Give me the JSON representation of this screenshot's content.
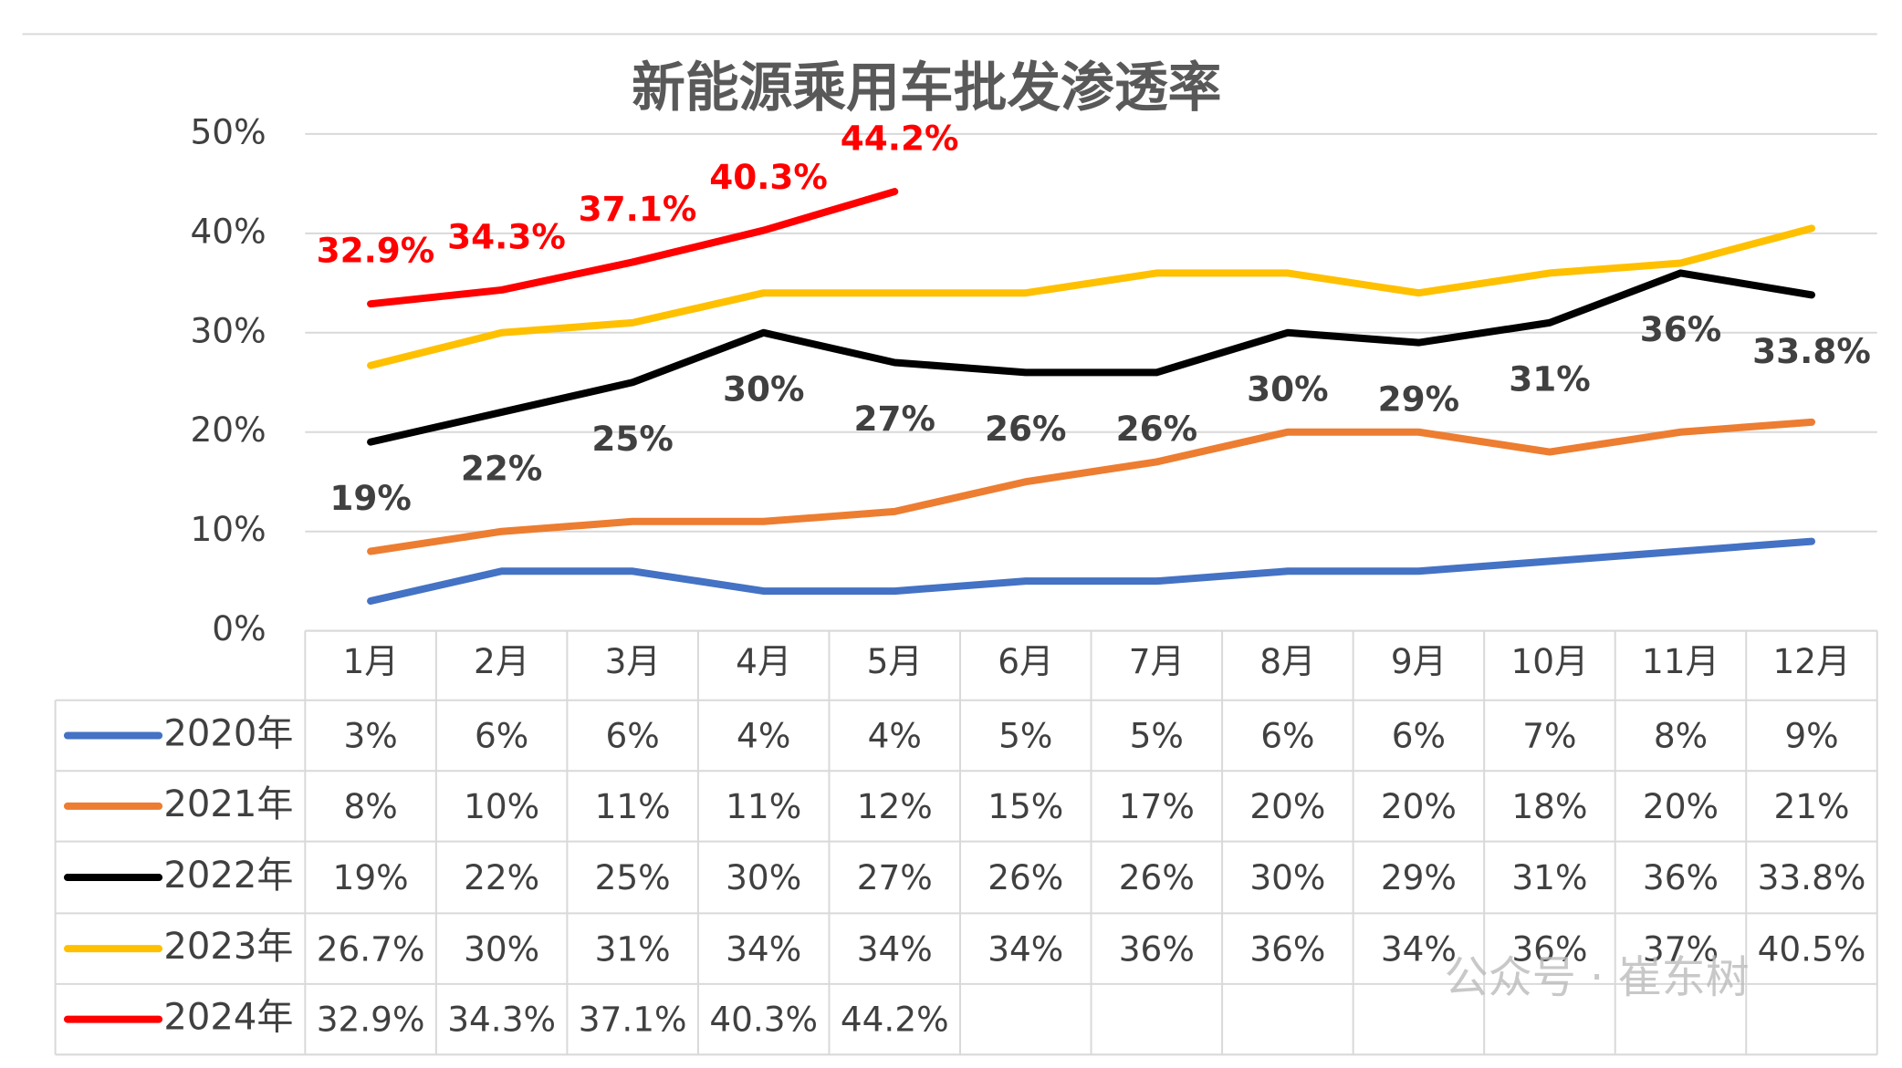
{
  "chart_data": {
    "type": "line",
    "title": "新能源乘用车批发渗透率",
    "categories": [
      "1月",
      "2月",
      "3月",
      "4月",
      "5月",
      "6月",
      "7月",
      "8月",
      "9月",
      "10月",
      "11月",
      "12月"
    ],
    "ylim": [
      0,
      50
    ],
    "yticks": [
      {
        "value": 0,
        "label": "0%"
      },
      {
        "value": 10,
        "label": "10%"
      },
      {
        "value": 20,
        "label": "20%"
      },
      {
        "value": 30,
        "label": "30%"
      },
      {
        "value": 40,
        "label": "40%"
      },
      {
        "value": 50,
        "label": "50%"
      }
    ],
    "grid": true,
    "series": [
      {
        "name": "2020年",
        "color": "#4472c4",
        "values": [
          3,
          6,
          6,
          4,
          4,
          5,
          5,
          6,
          6,
          7,
          8,
          9
        ],
        "value_labels": [
          "3%",
          "6%",
          "6%",
          "4%",
          "4%",
          "5%",
          "5%",
          "6%",
          "6%",
          "7%",
          "8%",
          "9%"
        ]
      },
      {
        "name": "2021年",
        "color": "#ed7d31",
        "values": [
          8,
          10,
          11,
          11,
          12,
          15,
          17,
          20,
          20,
          18,
          20,
          21
        ],
        "value_labels": [
          "8%",
          "10%",
          "11%",
          "11%",
          "12%",
          "15%",
          "17%",
          "20%",
          "20%",
          "18%",
          "20%",
          "21%"
        ]
      },
      {
        "name": "2022年",
        "color": "#000000",
        "values": [
          19,
          22,
          25,
          30,
          27,
          26,
          26,
          30,
          29,
          31,
          36,
          33.8
        ],
        "value_labels": [
          "19%",
          "22%",
          "25%",
          "30%",
          "27%",
          "26%",
          "26%",
          "30%",
          "29%",
          "31%",
          "36%",
          "33.8%"
        ],
        "show_labels": "below"
      },
      {
        "name": "2023年",
        "color": "#ffc000",
        "values": [
          26.7,
          30,
          31,
          34,
          34,
          34,
          36,
          36,
          34,
          36,
          37,
          40.5
        ],
        "value_labels": [
          "26.7%",
          "30%",
          "31%",
          "34%",
          "34%",
          "34%",
          "36%",
          "36%",
          "34%",
          "36%",
          "37%",
          "40.5%"
        ]
      },
      {
        "name": "2024年",
        "color": "#ff0000",
        "values": [
          32.9,
          34.3,
          37.1,
          40.3,
          44.2,
          null,
          null,
          null,
          null,
          null,
          null,
          null
        ],
        "value_labels": [
          "32.9%",
          "34.3%",
          "37.1%",
          "40.3%",
          "44.2%",
          null,
          null,
          null,
          null,
          null,
          null,
          null
        ],
        "show_labels": "above"
      }
    ],
    "watermark": "公众号 · 崔东树"
  }
}
